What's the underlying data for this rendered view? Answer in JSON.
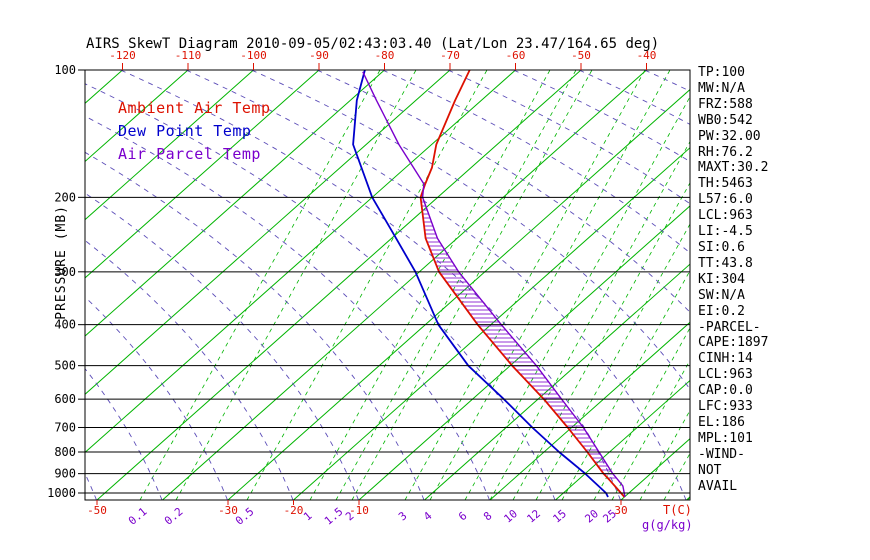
{
  "title": "AIRS SkewT Diagram 2010-09-05/02:43:03.40 (Lat/Lon 23.47/164.65 deg)",
  "colors": {
    "isotherm": "#00b400",
    "dry_adiabat": "#5c4db8",
    "temp": "#dd1100",
    "dewpoint": "#0000cc",
    "parcel": "#7a00cc",
    "axis": "#000000"
  },
  "y_axis": {
    "label": "PRESSURE (MB)",
    "ticks": [
      100,
      200,
      300,
      400,
      500,
      600,
      700,
      800,
      900,
      1000
    ]
  },
  "top_axis": {
    "ticks": [
      -120,
      -110,
      -100,
      -90,
      -80,
      -70,
      -60,
      -50,
      -40
    ]
  },
  "bottom_axis": {
    "temp_ticks": [
      -50,
      -30,
      -20,
      -10,
      30
    ],
    "temp_unit": "T(C)",
    "mix_ticks": [
      0.1,
      0.2,
      0.5,
      1,
      1.5,
      2,
      3,
      4,
      6,
      8,
      10,
      12,
      15,
      20,
      25
    ],
    "mix_unit": "g(g/kg)"
  },
  "legend": [
    {
      "label": "Ambient Air Temp",
      "color_key": "temp"
    },
    {
      "label": "Dew Point Temp",
      "color_key": "dewpoint"
    },
    {
      "label": "Air Parcel Temp",
      "color_key": "parcel"
    }
  ],
  "stats": [
    "TP:100",
    "MW:N/A",
    "FRZ:588",
    "WB0:542",
    "PW:32.00",
    "RH:76.2",
    "MAXT:30.2",
    "TH:5463",
    "L57:6.0",
    "LCL:963",
    "LI:-4.5",
    "SI:0.6",
    "TT:43.8",
    "KI:304",
    "SW:N/A",
    "EI:0.2",
    "-PARCEL-",
    "CAPE:1897",
    "CINH:14",
    "LCL:963",
    "CAP:0.0",
    "LFC:933",
    "EL:186",
    "MPL:101",
    "-WIND-",
    "NOT",
    "AVAIL"
  ],
  "grid": {
    "isotherm_step_C": 10,
    "isotherm_range_C": [
      -130,
      40
    ]
  },
  "chart_data": {
    "type": "line",
    "title": "AIRS SkewT Diagram 2010-09-05/02:43:03.40 (Lat/Lon 23.47/164.65 deg)",
    "x_axis": {
      "label": "T(C)",
      "type": "skewed-temperature",
      "range": [
        -120,
        40
      ]
    },
    "y_axis": {
      "label": "PRESSURE (MB)",
      "type": "log-pressure",
      "range": [
        100,
        1050
      ],
      "inverted": true
    },
    "point_format": [
      "pressure_mb",
      "temperature_C"
    ],
    "series": [
      {
        "name": "Ambient Air Temp",
        "color_key": "temp",
        "width": 1.8,
        "points": [
          [
            1022,
            30
          ],
          [
            1000,
            28.8
          ],
          [
            933,
            24.9
          ],
          [
            900,
            22.8
          ],
          [
            800,
            16.6
          ],
          [
            700,
            9.4
          ],
          [
            600,
            0.9
          ],
          [
            500,
            -9.7
          ],
          [
            400,
            -22
          ],
          [
            300,
            -37
          ],
          [
            250,
            -44.8
          ],
          [
            200,
            -52.6
          ],
          [
            186,
            -54.2
          ],
          [
            170,
            -56
          ],
          [
            150,
            -59.3
          ],
          [
            118,
            -64
          ],
          [
            100,
            -67
          ]
        ]
      },
      {
        "name": "Dew Point Temp",
        "color_key": "dewpoint",
        "width": 1.8,
        "points": [
          [
            1022,
            27.5
          ],
          [
            1000,
            26.5
          ],
          [
            900,
            20
          ],
          [
            800,
            12.3
          ],
          [
            700,
            4
          ],
          [
            600,
            -5.2
          ],
          [
            500,
            -16.4
          ],
          [
            400,
            -28
          ],
          [
            300,
            -40.6
          ],
          [
            250,
            -49.3
          ],
          [
            200,
            -60
          ],
          [
            150,
            -72
          ],
          [
            118,
            -79
          ],
          [
            100,
            -83
          ]
        ]
      },
      {
        "name": "Air Parcel Temp",
        "color_key": "parcel",
        "width": 1.4,
        "points": [
          [
            1022,
            30.1
          ],
          [
            963,
            27.9
          ],
          [
            933,
            26.2
          ],
          [
            900,
            24.2
          ],
          [
            800,
            18.4
          ],
          [
            700,
            11.8
          ],
          [
            600,
            3.6
          ],
          [
            500,
            -6
          ],
          [
            400,
            -18.4
          ],
          [
            300,
            -34
          ],
          [
            250,
            -43
          ],
          [
            200,
            -52.3
          ],
          [
            186,
            -54.4
          ],
          [
            150,
            -65
          ],
          [
            118,
            -76
          ],
          [
            101,
            -83
          ]
        ]
      }
    ],
    "cape_area": {
      "between": [
        "Air Parcel Temp",
        "Ambient Air Temp"
      ],
      "pressure_range": [
        933,
        186
      ],
      "style": "horizontal-hatch"
    }
  }
}
